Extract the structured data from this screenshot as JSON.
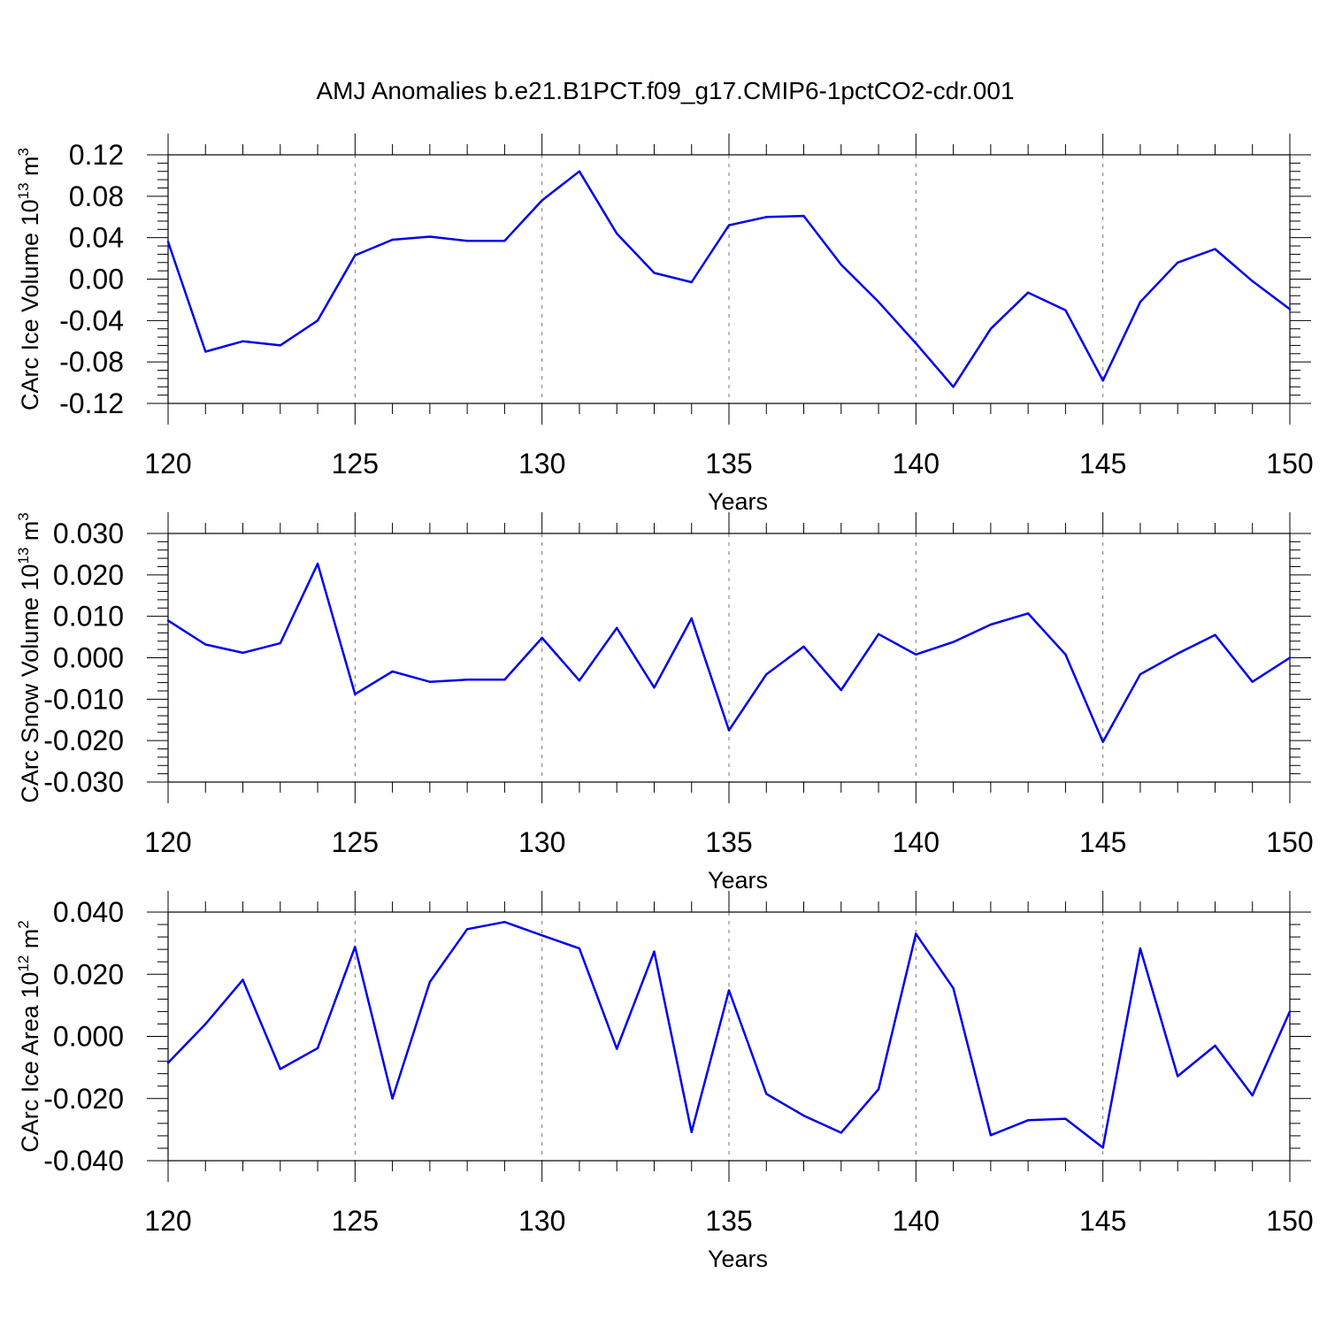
{
  "title": "AMJ Anomalies b.e21.B1PCT.f09_g17.CMIP6-1pctCO2-cdr.001",
  "colors": {
    "series": "#0000ee",
    "frame": "#000000",
    "grid": "#777777"
  },
  "chart_data": [
    {
      "type": "line",
      "ylabel": {
        "main": "CArc Ice Volume 10",
        "exp": "13",
        "unit": " m",
        "unit_exp": "3"
      },
      "xlabel": "Years",
      "xlim": [
        120,
        150
      ],
      "ylim": [
        -0.12,
        0.12
      ],
      "yticks": [
        -0.12,
        -0.08,
        -0.04,
        0.0,
        0.04,
        0.08,
        0.12
      ],
      "ytick_labels": [
        "-0.12",
        "-0.08",
        "-0.04",
        "0.00",
        "0.04",
        "0.08",
        "0.12"
      ],
      "xticks": [
        120,
        125,
        130,
        135,
        140,
        145,
        150
      ],
      "xtick_labels": [
        "120",
        "125",
        "130",
        "135",
        "140",
        "145",
        "150"
      ],
      "vgrid": [
        125,
        130,
        135,
        140,
        145
      ],
      "x": [
        120,
        121,
        122,
        123,
        124,
        125,
        126,
        127,
        128,
        129,
        130,
        131,
        132,
        133,
        134,
        135,
        136,
        137,
        138,
        139,
        140,
        141,
        142,
        143,
        144,
        145,
        146,
        147,
        148,
        149,
        150
      ],
      "values": [
        0.036,
        -0.07,
        -0.06,
        -0.064,
        -0.04,
        0.023,
        0.038,
        0.041,
        0.037,
        0.037,
        0.076,
        0.104,
        0.044,
        0.006,
        -0.003,
        0.052,
        0.06,
        0.061,
        0.014,
        -0.022,
        -0.062,
        -0.104,
        -0.048,
        -0.013,
        -0.03,
        -0.098,
        -0.022,
        0.016,
        0.029,
        -0.002,
        -0.029
      ]
    },
    {
      "type": "line",
      "ylabel": {
        "main": "CArc Snow Volume 10",
        "exp": "13",
        "unit": " m",
        "unit_exp": "3"
      },
      "xlabel": "Years",
      "xlim": [
        120,
        150
      ],
      "ylim": [
        -0.03,
        0.03
      ],
      "yticks": [
        -0.03,
        -0.02,
        -0.01,
        0.0,
        0.01,
        0.02,
        0.03
      ],
      "ytick_labels": [
        "-0.030",
        "-0.020",
        "-0.010",
        "0.000",
        "0.010",
        "0.020",
        "0.030"
      ],
      "xticks": [
        120,
        125,
        130,
        135,
        140,
        145,
        150
      ],
      "xtick_labels": [
        "120",
        "125",
        "130",
        "135",
        "140",
        "145",
        "150"
      ],
      "vgrid": [
        125,
        130,
        135,
        140,
        145
      ],
      "x": [
        120,
        121,
        122,
        123,
        124,
        125,
        126,
        127,
        128,
        129,
        130,
        131,
        132,
        133,
        134,
        135,
        136,
        137,
        138,
        139,
        140,
        141,
        142,
        143,
        144,
        145,
        146,
        147,
        148,
        149,
        150
      ],
      "values": [
        0.009,
        0.0032,
        0.0012,
        0.0035,
        0.0227,
        -0.0088,
        -0.0033,
        -0.0058,
        -0.0053,
        -0.0053,
        0.0048,
        -0.0055,
        0.0072,
        -0.0072,
        0.0095,
        -0.0175,
        -0.004,
        0.0027,
        -0.0078,
        0.0057,
        0.0008,
        0.0038,
        0.008,
        0.0107,
        0.0008,
        -0.0203,
        -0.004,
        0.001,
        0.0055,
        -0.0058,
        0.0
      ]
    },
    {
      "type": "line",
      "ylabel": {
        "main": "CArc Ice Area 10",
        "exp": "12",
        "unit": " m",
        "unit_exp": "2"
      },
      "xlabel": "Years",
      "xlim": [
        120,
        150
      ],
      "ylim": [
        -0.04,
        0.04
      ],
      "yticks": [
        -0.04,
        -0.02,
        0.0,
        0.02,
        0.04
      ],
      "ytick_labels": [
        "-0.040",
        "-0.020",
        "0.000",
        "0.020",
        "0.040"
      ],
      "xticks": [
        120,
        125,
        130,
        135,
        140,
        145,
        150
      ],
      "xtick_labels": [
        "120",
        "125",
        "130",
        "135",
        "140",
        "145",
        "150"
      ],
      "vgrid": [
        125,
        130,
        135,
        140,
        145
      ],
      "x": [
        120,
        121,
        122,
        123,
        124,
        125,
        126,
        127,
        128,
        129,
        130,
        131,
        132,
        133,
        134,
        135,
        136,
        137,
        138,
        139,
        140,
        141,
        142,
        143,
        144,
        145,
        146,
        147,
        148,
        149,
        150
      ],
      "values": [
        -0.0085,
        0.004,
        0.0182,
        -0.0105,
        -0.0038,
        0.0288,
        -0.02,
        0.0175,
        0.0345,
        0.0368,
        0.0325,
        0.0283,
        -0.004,
        0.0273,
        -0.0308,
        0.0148,
        -0.0185,
        -0.0255,
        -0.031,
        -0.017,
        0.033,
        0.0155,
        -0.0318,
        -0.027,
        -0.0265,
        -0.0358,
        0.0283,
        -0.0128,
        -0.003,
        -0.019,
        0.008
      ]
    }
  ]
}
